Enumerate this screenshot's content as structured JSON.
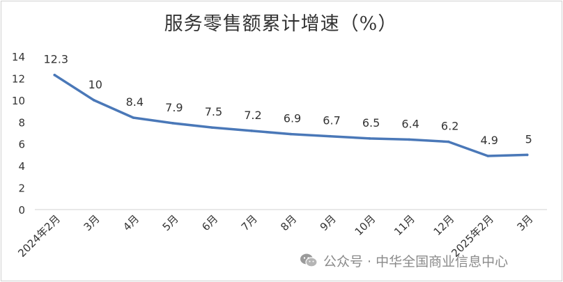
{
  "chart_data": {
    "type": "line",
    "title": "服务零售额累计增速（%）",
    "categories": [
      "2024年2月",
      "3月",
      "4月",
      "5月",
      "6月",
      "7月",
      "8月",
      "9月",
      "10月",
      "11月",
      "12月",
      "2025年2月",
      "3月"
    ],
    "series": [
      {
        "values": [
          12.3,
          10,
          8.4,
          7.9,
          7.5,
          7.2,
          6.9,
          6.7,
          6.5,
          6.4,
          6.2,
          4.9,
          5
        ],
        "color": "#4a78b8"
      }
    ],
    "data_labels": [
      "12.3",
      "10",
      "8.4",
      "7.9",
      "7.5",
      "7.2",
      "6.9",
      "6.7",
      "6.5",
      "6.4",
      "6.2",
      "4.9",
      "5"
    ],
    "ylim": [
      0,
      14
    ],
    "yticks": [
      0,
      2,
      4,
      6,
      8,
      10,
      12,
      14
    ],
    "xlabel": "",
    "ylabel": "",
    "grid": false,
    "legend": "none"
  },
  "watermark": {
    "icon": "wechat-icon",
    "text": "公众号 · 中华全国商业信息中心"
  }
}
